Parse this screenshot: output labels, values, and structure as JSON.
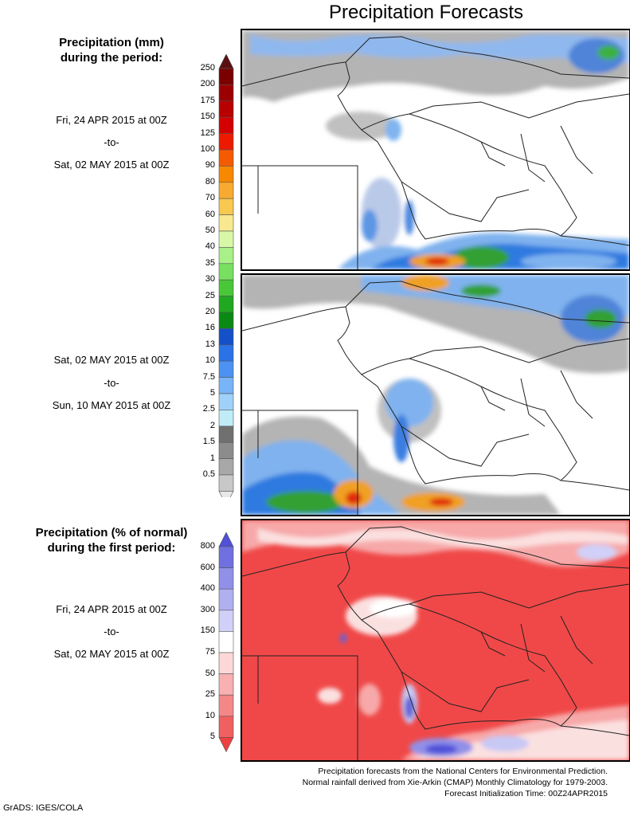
{
  "title": "Precipitation Forecasts",
  "precip_section": {
    "heading_line1": "Precipitation (mm)",
    "heading_line2": "during the period:",
    "period1": {
      "start": "Fri, 24 APR 2015 at 00Z",
      "sep": "-to-",
      "end": "Sat, 02 MAY 2015 at 00Z"
    },
    "period2": {
      "start": "Sat, 02 MAY 2015 at 00Z",
      "sep": "-to-",
      "end": "Sun, 10 MAY 2015 at 00Z"
    },
    "colorbar_labels": [
      "250",
      "200",
      "175",
      "150",
      "125",
      "100",
      "90",
      "80",
      "70",
      "60",
      "50",
      "40",
      "35",
      "30",
      "25",
      "20",
      "16",
      "13",
      "10",
      "7.5",
      "5",
      "2.5",
      "2",
      "1.5",
      "1",
      "0.5"
    ],
    "colorbar_colors": [
      "#5a1010",
      "#7a0000",
      "#9a0000",
      "#b80000",
      "#d40000",
      "#ee1a00",
      "#f45a00",
      "#f88800",
      "#f8aa30",
      "#f8c850",
      "#f8e890",
      "#d8f8a8",
      "#a8f088",
      "#78e060",
      "#48c838",
      "#20a820",
      "#0a8a14",
      "#1450c8",
      "#2a72e6",
      "#4c92f2",
      "#78b4f8",
      "#9ed2fa",
      "#c0ecf8",
      "#707070",
      "#8c8c8c",
      "#a8a8a8",
      "#c8c8c8",
      "#e8e8e8"
    ]
  },
  "anomaly_section": {
    "heading_line1": "Precipitation (% of normal)",
    "heading_line2": "during the first period:",
    "period": {
      "start": "Fri, 24 APR 2015 at 00Z",
      "sep": "-to-",
      "end": "Sat, 02 MAY 2015 at 00Z"
    },
    "colorbar_labels": [
      "800",
      "600",
      "400",
      "300",
      "150",
      "75",
      "50",
      "25",
      "10",
      "5"
    ],
    "colorbar_colors": [
      "#5050d8",
      "#7070e0",
      "#9090e8",
      "#b0b0f0",
      "#d0d0f8",
      "#ffffff",
      "#fcd8d8",
      "#f8b0b0",
      "#f48888",
      "#f06060",
      "#ee4040"
    ]
  },
  "footer": {
    "line1": "Precipitation forecasts from the National Centers for Environmental Prediction.",
    "line2": "Normal rainfall derived from Xie-Arkin (CMAP) Monthly Climatology for 1979-2003.",
    "line3": "Forecast Initialization Time: 00Z24APR2015"
  },
  "credit": "GrADS: IGES/COLA"
}
